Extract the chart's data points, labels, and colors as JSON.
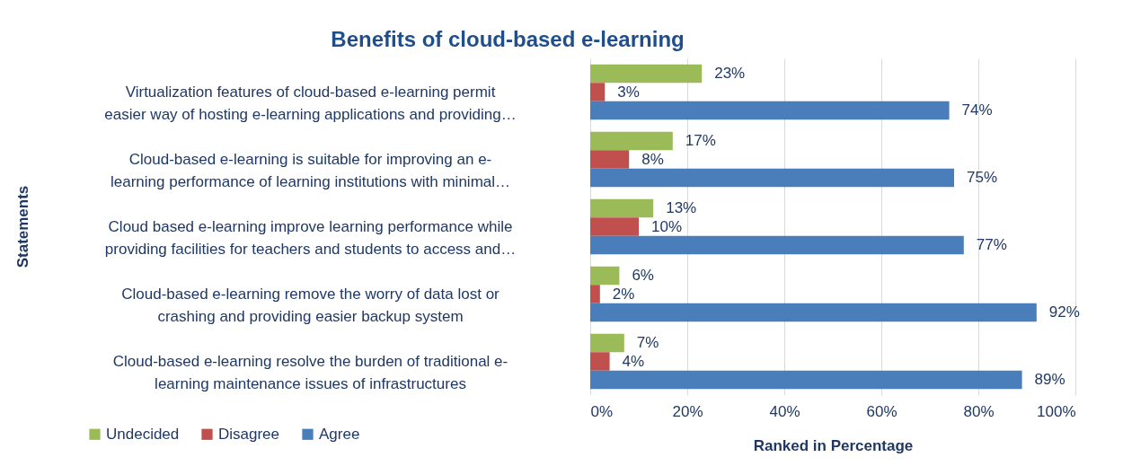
{
  "chart_data": {
    "type": "bar",
    "orientation": "horizontal",
    "title": "Benefits of cloud-based e-learning",
    "xlabel": "Ranked in  Percentage",
    "ylabel": "Statements",
    "categories": [
      "Virtualization features of cloud-based e-learning permit\neasier way of hosting e-learning applications and providing…",
      "Cloud-based e-learning is suitable for improving an e-\nlearning performance of learning institutions with minimal…",
      "Cloud based e-learning improve learning performance while\nproviding facilities for teachers and students to access and…",
      "Cloud-based e-learning remove the worry of data lost or\ncrashing and providing easier backup system",
      "Cloud-based e-learning resolve the burden of traditional e-\nlearning maintenance issues of infrastructures"
    ],
    "series": [
      {
        "name": "Undecided",
        "color": "#9bbb59",
        "values": [
          23,
          17,
          13,
          6,
          7
        ],
        "value_labels": [
          "23%",
          "17%",
          "13%",
          "6%",
          "7%"
        ]
      },
      {
        "name": "Disagree",
        "color": "#c0504d",
        "values": [
          3,
          8,
          10,
          2,
          4
        ],
        "value_labels": [
          "3%",
          "8%",
          "10%",
          "2%",
          "4%"
        ]
      },
      {
        "name": "Agree",
        "color": "#4a7ebb",
        "values": [
          74,
          75,
          77,
          92,
          89
        ],
        "value_labels": [
          "74%",
          "75%",
          "77%",
          "92%",
          "89%"
        ]
      }
    ],
    "xlim": [
      0,
      100
    ],
    "xticks": [
      {
        "value": 0,
        "label": "0%"
      },
      {
        "value": 20,
        "label": "20%"
      },
      {
        "value": 40,
        "label": "40%"
      },
      {
        "value": 60,
        "label": "60%"
      },
      {
        "value": 80,
        "label": "80%"
      },
      {
        "value": 100,
        "label": "100%"
      }
    ],
    "grid": "x",
    "legend": "bottom left"
  }
}
